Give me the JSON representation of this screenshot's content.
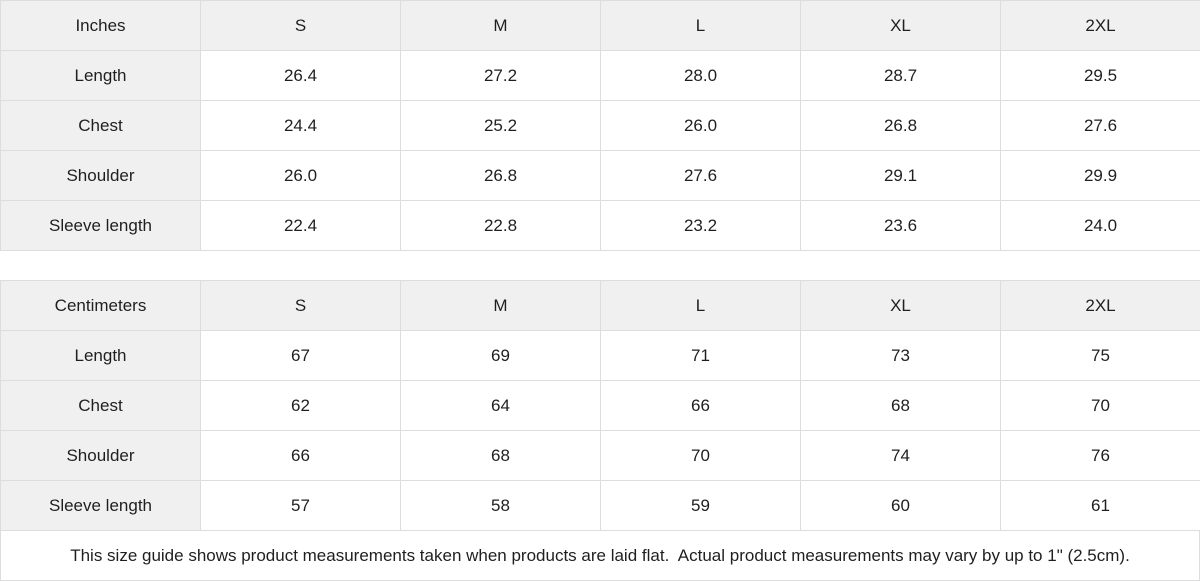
{
  "tables": [
    {
      "unit_label": "Inches",
      "sizes": [
        "S",
        "M",
        "L",
        "XL",
        "2XL"
      ],
      "rows": [
        {
          "label": "Length",
          "values": [
            "26.4",
            "27.2",
            "28.0",
            "28.7",
            "29.5"
          ]
        },
        {
          "label": "Chest",
          "values": [
            "24.4",
            "25.2",
            "26.0",
            "26.8",
            "27.6"
          ]
        },
        {
          "label": "Shoulder",
          "values": [
            "26.0",
            "26.8",
            "27.6",
            "29.1",
            "29.9"
          ]
        },
        {
          "label": "Sleeve length",
          "values": [
            "22.4",
            "22.8",
            "23.2",
            "23.6",
            "24.0"
          ]
        }
      ]
    },
    {
      "unit_label": "Centimeters",
      "sizes": [
        "S",
        "M",
        "L",
        "XL",
        "2XL"
      ],
      "rows": [
        {
          "label": "Length",
          "values": [
            "67",
            "69",
            "71",
            "73",
            "75"
          ]
        },
        {
          "label": "Chest",
          "values": [
            "62",
            "64",
            "66",
            "68",
            "70"
          ]
        },
        {
          "label": "Shoulder",
          "values": [
            "66",
            "68",
            "70",
            "74",
            "76"
          ]
        },
        {
          "label": "Sleeve length",
          "values": [
            "57",
            "58",
            "59",
            "60",
            "61"
          ]
        }
      ]
    }
  ],
  "footer": {
    "note": "This size guide shows product measurements taken when products are laid flat.  Actual product measurements may vary by up to 1\" (2.5cm)."
  },
  "colors": {
    "header_bg": "#f0f0f0",
    "border": "#dddddd",
    "text": "#1f1f1f",
    "cell_bg": "#ffffff"
  }
}
